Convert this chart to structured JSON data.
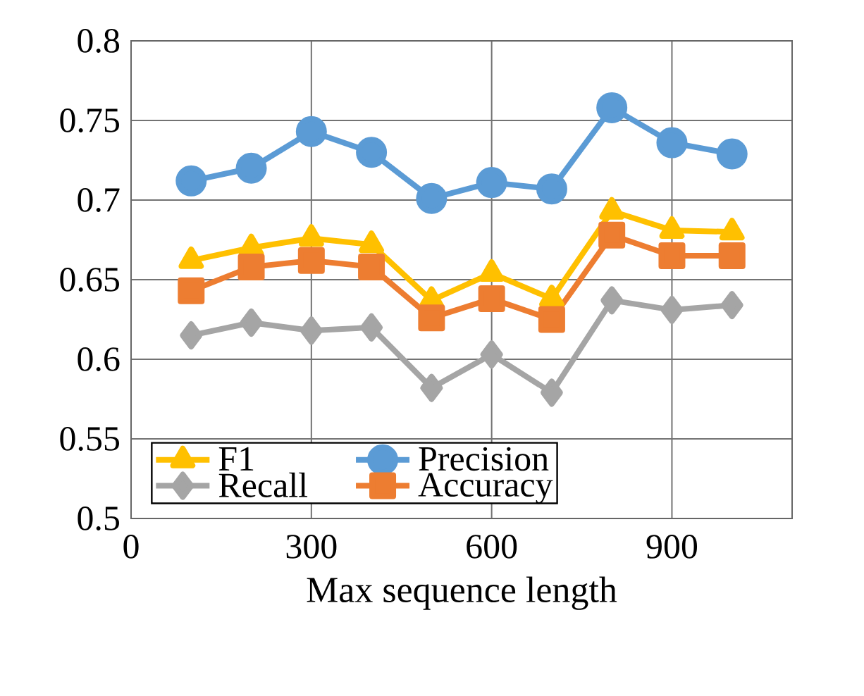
{
  "chart_data": {
    "type": "line",
    "xlabel": "Max sequence length",
    "x": [
      100,
      200,
      300,
      400,
      500,
      600,
      700,
      800,
      900,
      1000
    ],
    "series": [
      {
        "name": "F1",
        "color": "#ffc000",
        "marker": "triangle",
        "values": [
          0.662,
          0.67,
          0.676,
          0.672,
          0.637,
          0.654,
          0.638,
          0.693,
          0.681,
          0.68
        ]
      },
      {
        "name": "Precision",
        "color": "#5b9bd5",
        "marker": "circle",
        "values": [
          0.712,
          0.72,
          0.743,
          0.73,
          0.701,
          0.711,
          0.707,
          0.758,
          0.736,
          0.729
        ]
      },
      {
        "name": "Recall",
        "color": "#a5a5a5",
        "marker": "diamond",
        "values": [
          0.615,
          0.623,
          0.618,
          0.62,
          0.582,
          0.603,
          0.579,
          0.637,
          0.631,
          0.634
        ]
      },
      {
        "name": "Accuracy",
        "color": "#ed7d31",
        "marker": "square",
        "values": [
          0.643,
          0.658,
          0.662,
          0.658,
          0.626,
          0.638,
          0.625,
          0.678,
          0.665,
          0.665
        ]
      }
    ],
    "xlim": [
      0,
      1100
    ],
    "xticks": [
      0,
      300,
      600,
      900
    ],
    "ylim": [
      0.5,
      0.8
    ],
    "yticks": [
      0.5,
      0.55,
      0.6,
      0.65,
      0.7,
      0.75,
      0.8
    ],
    "grid": true,
    "legend": "bottom left",
    "line_style": "solid"
  }
}
